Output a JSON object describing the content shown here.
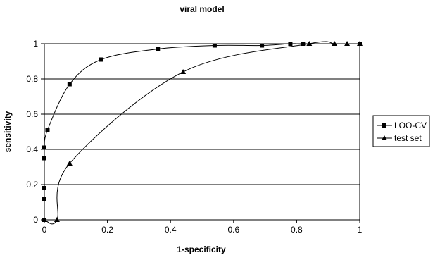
{
  "chart_data": {
    "type": "line",
    "title": "viral model",
    "xlabel": "1-specificity",
    "ylabel": "sensitivity",
    "xlim": [
      0,
      1
    ],
    "ylim": [
      0,
      1
    ],
    "xticks": [
      "0",
      "0.2",
      "0.4",
      "0.6",
      "0.8",
      "1"
    ],
    "yticks": [
      "0",
      "0.2",
      "0.4",
      "0.6",
      "0.8",
      "1"
    ],
    "grid": "horizontal",
    "legend_position": "right",
    "series": [
      {
        "name": "LOO-CV",
        "marker": "square",
        "color": "#000000",
        "x": [
          0,
          0,
          0,
          0,
          0,
          0,
          0.01,
          0.08,
          0.18,
          0.36,
          0.54,
          0.69,
          0.78,
          0.82,
          1.0
        ],
        "y": [
          0,
          0,
          0.12,
          0.18,
          0.35,
          0.41,
          0.51,
          0.77,
          0.91,
          0.97,
          0.99,
          0.99,
          1.0,
          1.0,
          1.0
        ]
      },
      {
        "name": "test set",
        "marker": "triangle",
        "color": "#000000",
        "x": [
          0,
          0.04,
          0.08,
          0.44,
          0.84,
          0.92,
          0.96,
          1.0
        ],
        "y": [
          0,
          0,
          0.32,
          0.84,
          1.0,
          1.0,
          1.0,
          1.0
        ]
      }
    ]
  }
}
